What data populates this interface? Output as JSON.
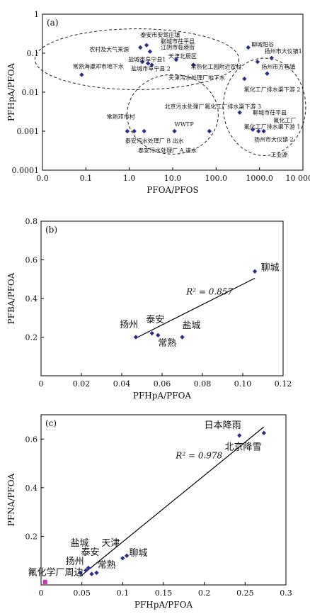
{
  "chart_data": [
    {
      "type": "scatter",
      "panel": "(a)",
      "xlabel": "PFOA/PFOS",
      "ylabel": "PFHpA/PFOA",
      "xscale": "log",
      "yscale": "log",
      "xlim": [
        0.01,
        10000
      ],
      "ylim": [
        0.0001,
        1
      ],
      "xticks": [
        0.01,
        0.1,
        1,
        10,
        100,
        1000,
        10000
      ],
      "xtick_labels": [
        "0.0",
        "0.1",
        "1.0",
        "10.0",
        "100.0",
        "1000.0",
        "10 000.0"
      ],
      "yticks": [
        1,
        0.1,
        0.01,
        0.001,
        0.0001
      ],
      "ytick_labels": [
        "1",
        "0.1",
        "0.01",
        "0.001",
        "0.0001"
      ],
      "points": [
        {
          "x": 0.08,
          "y": 0.028
        },
        {
          "x": 1.8,
          "y": 0.14
        },
        {
          "x": 2.5,
          "y": 0.16
        },
        {
          "x": 3.0,
          "y": 0.11
        },
        {
          "x": 2.0,
          "y": 0.06
        },
        {
          "x": 2.7,
          "y": 0.055
        },
        {
          "x": 3.3,
          "y": 0.05
        },
        {
          "x": 12,
          "y": 0.068
        },
        {
          "x": 30,
          "y": 0.05
        },
        {
          "x": 550,
          "y": 0.14
        },
        {
          "x": 900,
          "y": 0.06
        },
        {
          "x": 1900,
          "y": 0.075
        },
        {
          "x": 1500,
          "y": 0.03
        },
        {
          "x": 450,
          "y": 0.022
        },
        {
          "x": 350,
          "y": 0.003
        },
        {
          "x": 700,
          "y": 0.0011
        },
        {
          "x": 950,
          "y": 0.001
        },
        {
          "x": 1250,
          "y": 0.001
        },
        {
          "x": 0.9,
          "y": 0.001
        },
        {
          "x": 1.3,
          "y": 0.001
        },
        {
          "x": 2.2,
          "y": 0.001
        },
        {
          "x": 11,
          "y": 0.001
        },
        {
          "x": 70,
          "y": 0.001
        }
      ],
      "annotations": [
        {
          "text": "泰安市安驾庄镇",
          "x": 1.8,
          "y": 0.26,
          "color": "#111111"
        },
        {
          "text": "聊城市茌平县",
          "x": 5.3,
          "y": 0.18,
          "color": "#111111"
        },
        {
          "text": "江阴市临港街",
          "x": 5.3,
          "y": 0.125,
          "color": "#111111"
        },
        {
          "text": "天津北辰区",
          "x": 8.0,
          "y": 0.075,
          "color": "#111111"
        },
        {
          "text": "盐城市阜宁县1",
          "x": 0.95,
          "y": 0.062,
          "color": "#111111"
        },
        {
          "text": "盐城市阜宁县 2",
          "x": 1.1,
          "y": 0.036,
          "color": "#111111"
        },
        {
          "text": "常熟化工园附近农村",
          "x": 26,
          "y": 0.04,
          "color": "#111111"
        },
        {
          "text": "天津污水处理厂地下水",
          "x": 8.0,
          "y": 0.021,
          "color": "#111111"
        },
        {
          "text": "常熟海虞邓市地下水",
          "x": 0.05,
          "y": 0.041,
          "color": "#111111"
        },
        {
          "text": "农村及大气来源",
          "x": 0.12,
          "y": 0.11,
          "color": "#d21f1f"
        },
        {
          "text": "聊城阳谷",
          "x": 650,
          "y": 0.15,
          "color": "#111111"
        },
        {
          "text": "扬州市大仪镇1",
          "x": 1300,
          "y": 0.1,
          "color": "#111111"
        },
        {
          "text": "扬州市方巷镇",
          "x": 1100,
          "y": 0.04,
          "color": "#111111"
        },
        {
          "text": "氟化工厂排水渠下游 2",
          "x": 440,
          "y": 0.0105,
          "color": "#111111"
        },
        {
          "text": "聊城市茌平县",
          "x": 700,
          "y": 0.0027,
          "color": "#111111"
        },
        {
          "text": "氟化工厂",
          "x": 2100,
          "y": 0.0017,
          "color": "#111111"
        },
        {
          "text": "北京污水处理厂",
          "x": 6.5,
          "y": 0.0038,
          "color": "#111111"
        },
        {
          "text": "氟化工厂排水渠下游 3",
          "x": 55,
          "y": 0.0038,
          "color": "#111111"
        },
        {
          "text": "氟化工厂排水渠下游 1",
          "x": 440,
          "y": 0.00115,
          "color": "#111111"
        },
        {
          "text": "扬州市大仪镇 2",
          "x": 750,
          "y": 0.00055,
          "color": "#111111"
        },
        {
          "text": "工业源",
          "x": 1800,
          "y": 0.00022,
          "color": "#1a9a55"
        },
        {
          "text": "常熟邓市村",
          "x": 0.3,
          "y": 0.0021,
          "color": "#111111"
        },
        {
          "text": "WWTP",
          "x": 11,
          "y": 0.00135,
          "color": "#d21f1f"
        },
        {
          "text": "泰安污水处理厂 B 出水",
          "x": 0.8,
          "y": 0.0005,
          "color": "#111111"
        },
        {
          "text": "泰安污水处理厂 A 进水",
          "x": 1.6,
          "y": 0.000285,
          "color": "#111111"
        }
      ],
      "ellipses": [
        {
          "name": "农村及大气来源",
          "center": [
            1.5,
            0.07
          ],
          "semi_axes_decades": [
            2.35,
            0.78
          ]
        },
        {
          "name": "WWTP",
          "center": [
            10,
            0.0027
          ],
          "semi_axes_decades": [
            1.05,
            1.02
          ]
        },
        {
          "name": "工业源",
          "center": [
            1300,
            0.0042
          ],
          "semi_axes_decades": [
            0.95,
            1.25
          ]
        }
      ]
    },
    {
      "type": "scatter",
      "panel": "(b)",
      "xlabel": "PFHpA/PFOA",
      "ylabel": "PFBA/PFOA",
      "xlim": [
        0,
        0.12
      ],
      "ylim": [
        0,
        0.8
      ],
      "xticks": [
        0,
        0.02,
        0.04,
        0.06,
        0.08,
        0.1,
        0.12
      ],
      "xtick_labels": [
        "0",
        "0.02",
        "0.04",
        "0.06",
        "0.08",
        "0.10",
        "0.12"
      ],
      "yticks": [
        0,
        0.2,
        0.4,
        0.6,
        0.8
      ],
      "ytick_labels": [
        "",
        "0.2",
        "0.4",
        "0.6",
        "0.8"
      ],
      "points": [
        {
          "x": 0.047,
          "y": 0.2
        },
        {
          "x": 0.055,
          "y": 0.22
        },
        {
          "x": 0.058,
          "y": 0.21
        },
        {
          "x": 0.07,
          "y": 0.2
        },
        {
          "x": 0.106,
          "y": 0.54
        }
      ],
      "trendline": {
        "x": [
          0.047,
          0.106
        ],
        "y": [
          0.195,
          0.505
        ]
      },
      "r2_text": "R² = 0.857",
      "labels": [
        {
          "text": "聊城",
          "x": 0.109,
          "y": 0.545
        },
        {
          "text": "扬州",
          "x": 0.039,
          "y": 0.25
        },
        {
          "text": "泰安",
          "x": 0.052,
          "y": 0.275
        },
        {
          "text": "盐城",
          "x": 0.07,
          "y": 0.245
        },
        {
          "text": "常熟",
          "x": 0.058,
          "y": 0.155
        }
      ]
    },
    {
      "type": "scatter",
      "panel": "(c)",
      "xlabel": "PFHpA/PFOA",
      "ylabel": "PFNA/PFOA",
      "xlim": [
        0,
        0.3
      ],
      "ylim": [
        0,
        0.7
      ],
      "xticks": [
        0,
        0.05,
        0.1,
        0.15,
        0.2,
        0.25,
        0.3
      ],
      "xtick_labels": [
        "0",
        "0.05",
        "0.1",
        "0.15",
        "0.2",
        "0.25",
        "0.3"
      ],
      "yticks": [
        0.2,
        0.4,
        0.6
      ],
      "ytick_labels": [
        "0.2",
        "0.4",
        "0.6"
      ],
      "points": [
        {
          "x": 0.048,
          "y": 0.05
        },
        {
          "x": 0.055,
          "y": 0.06
        },
        {
          "x": 0.058,
          "y": 0.07
        },
        {
          "x": 0.062,
          "y": 0.045
        },
        {
          "x": 0.068,
          "y": 0.05
        },
        {
          "x": 0.1,
          "y": 0.11
        },
        {
          "x": 0.105,
          "y": 0.12
        },
        {
          "x": 0.243,
          "y": 0.615
        },
        {
          "x": 0.273,
          "y": 0.625
        }
      ],
      "highlight_point": {
        "x": 0.005,
        "y": 0.012,
        "color": "#cc33aa"
      },
      "trendline": {
        "x": [
          0.048,
          0.273
        ],
        "y": [
          0.035,
          0.65
        ]
      },
      "r2_text": "R² = 0.978",
      "labels": [
        {
          "text": "日本降雨",
          "x": 0.2,
          "y": 0.645
        },
        {
          "text": "北京降雪",
          "x": 0.225,
          "y": 0.555
        },
        {
          "text": "盐城",
          "x": 0.036,
          "y": 0.16
        },
        {
          "text": "天津",
          "x": 0.074,
          "y": 0.16
        },
        {
          "text": "泰安",
          "x": 0.049,
          "y": 0.122
        },
        {
          "text": "聊城",
          "x": 0.108,
          "y": 0.12
        },
        {
          "text": "扬州",
          "x": 0.03,
          "y": 0.085
        },
        {
          "text": "常熟",
          "x": 0.069,
          "y": 0.07
        },
        {
          "text": "氟化学厂周边",
          "x": -0.016,
          "y": 0.04
        }
      ]
    }
  ]
}
